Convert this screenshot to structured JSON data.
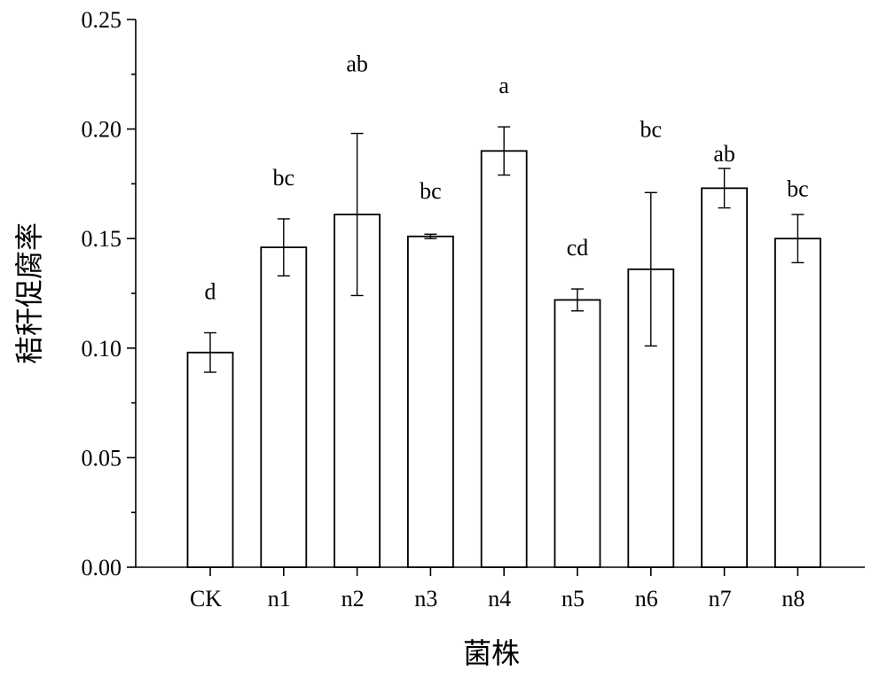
{
  "chart_data": {
    "type": "bar",
    "categories": [
      "CK",
      "n1",
      "n2",
      "n3",
      "n4",
      "n5",
      "n6",
      "n7",
      "n8"
    ],
    "values": [
      0.098,
      0.146,
      0.161,
      0.151,
      0.19,
      0.122,
      0.136,
      0.173,
      0.15
    ],
    "errors": [
      0.009,
      0.013,
      0.037,
      0.001,
      0.011,
      0.005,
      0.035,
      0.009,
      0.011
    ],
    "significance": [
      "d",
      "bc",
      "ab",
      "bc",
      "a",
      "cd",
      "bc",
      "ab",
      "bc"
    ],
    "significance_y": [
      0.126,
      0.178,
      0.23,
      0.172,
      0.22,
      0.146,
      0.2,
      0.189,
      0.173
    ],
    "xlabel": "菌株",
    "ylabel": "秸秆促腐率",
    "ylim": [
      0,
      0.25
    ],
    "yticks": [
      "0.00",
      "0.05",
      "0.10",
      "0.15",
      "0.20",
      "0.25"
    ],
    "grid": false,
    "legend": "none",
    "bar_color": "#ffffff",
    "edge_color": "#000000"
  }
}
